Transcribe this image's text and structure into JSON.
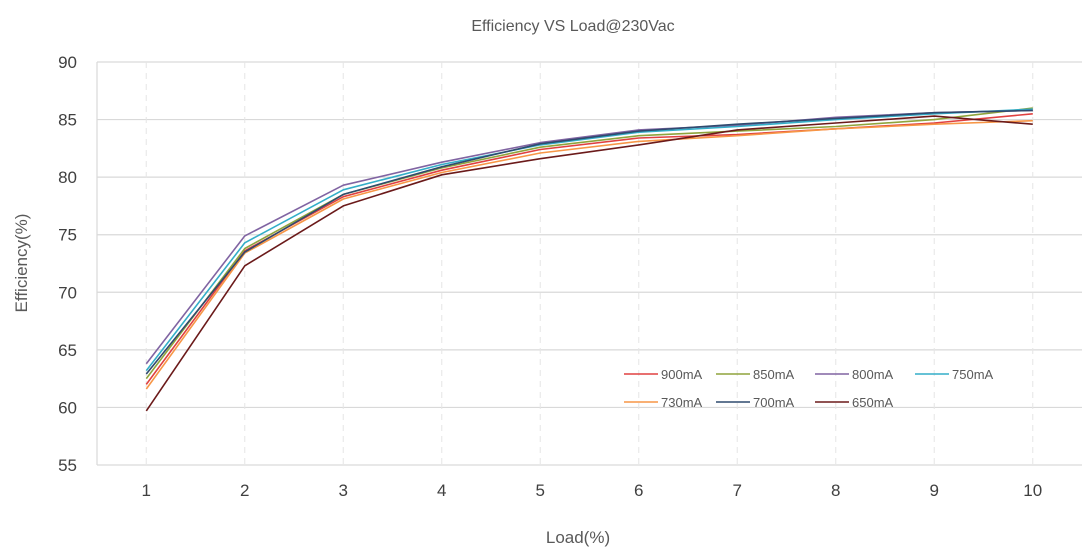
{
  "chart_data": {
    "type": "line",
    "title": "Efficiency VS Load@230Vac",
    "xlabel": "Load(%)",
    "ylabel": "Efficiency(%)",
    "categories": [
      "1",
      "2",
      "3",
      "4",
      "5",
      "6",
      "7",
      "8",
      "9",
      "10"
    ],
    "ylim": [
      55,
      90
    ],
    "yticks": [
      "55",
      "60",
      "65",
      "70",
      "75",
      "80",
      "85",
      "90"
    ],
    "grid": "horizontal solid, vertical dashed",
    "legend_position": "inside-lower-right",
    "series": [
      {
        "name": "900mA",
        "color": "#e04040",
        "values": [
          62.0,
          73.6,
          78.3,
          80.6,
          82.4,
          83.4,
          83.7,
          84.2,
          84.7,
          85.5
        ]
      },
      {
        "name": "850mA",
        "color": "#8fa43c",
        "values": [
          62.5,
          73.8,
          78.5,
          80.8,
          82.6,
          83.6,
          84.0,
          84.4,
          85.0,
          86.0
        ]
      },
      {
        "name": "800mA",
        "color": "#8064a2",
        "values": [
          63.8,
          74.9,
          79.3,
          81.3,
          83.0,
          84.1,
          84.5,
          85.2,
          85.6,
          85.8
        ]
      },
      {
        "name": "750mA",
        "color": "#33aec8",
        "values": [
          63.2,
          74.3,
          78.9,
          81.1,
          82.8,
          83.9,
          84.4,
          85.0,
          85.5,
          85.9
        ]
      },
      {
        "name": "730mA",
        "color": "#f79646",
        "values": [
          61.6,
          73.4,
          78.1,
          80.4,
          82.1,
          83.1,
          83.6,
          84.2,
          84.6,
          84.9
        ]
      },
      {
        "name": "700mA",
        "color": "#2f4a6e",
        "values": [
          62.9,
          73.5,
          78.5,
          80.9,
          82.9,
          84.0,
          84.6,
          85.1,
          85.6,
          85.8
        ]
      },
      {
        "name": "650mA",
        "color": "#6b1a1a",
        "values": [
          59.7,
          72.3,
          77.5,
          80.2,
          81.6,
          82.8,
          84.1,
          84.7,
          85.3,
          84.6
        ]
      }
    ]
  }
}
